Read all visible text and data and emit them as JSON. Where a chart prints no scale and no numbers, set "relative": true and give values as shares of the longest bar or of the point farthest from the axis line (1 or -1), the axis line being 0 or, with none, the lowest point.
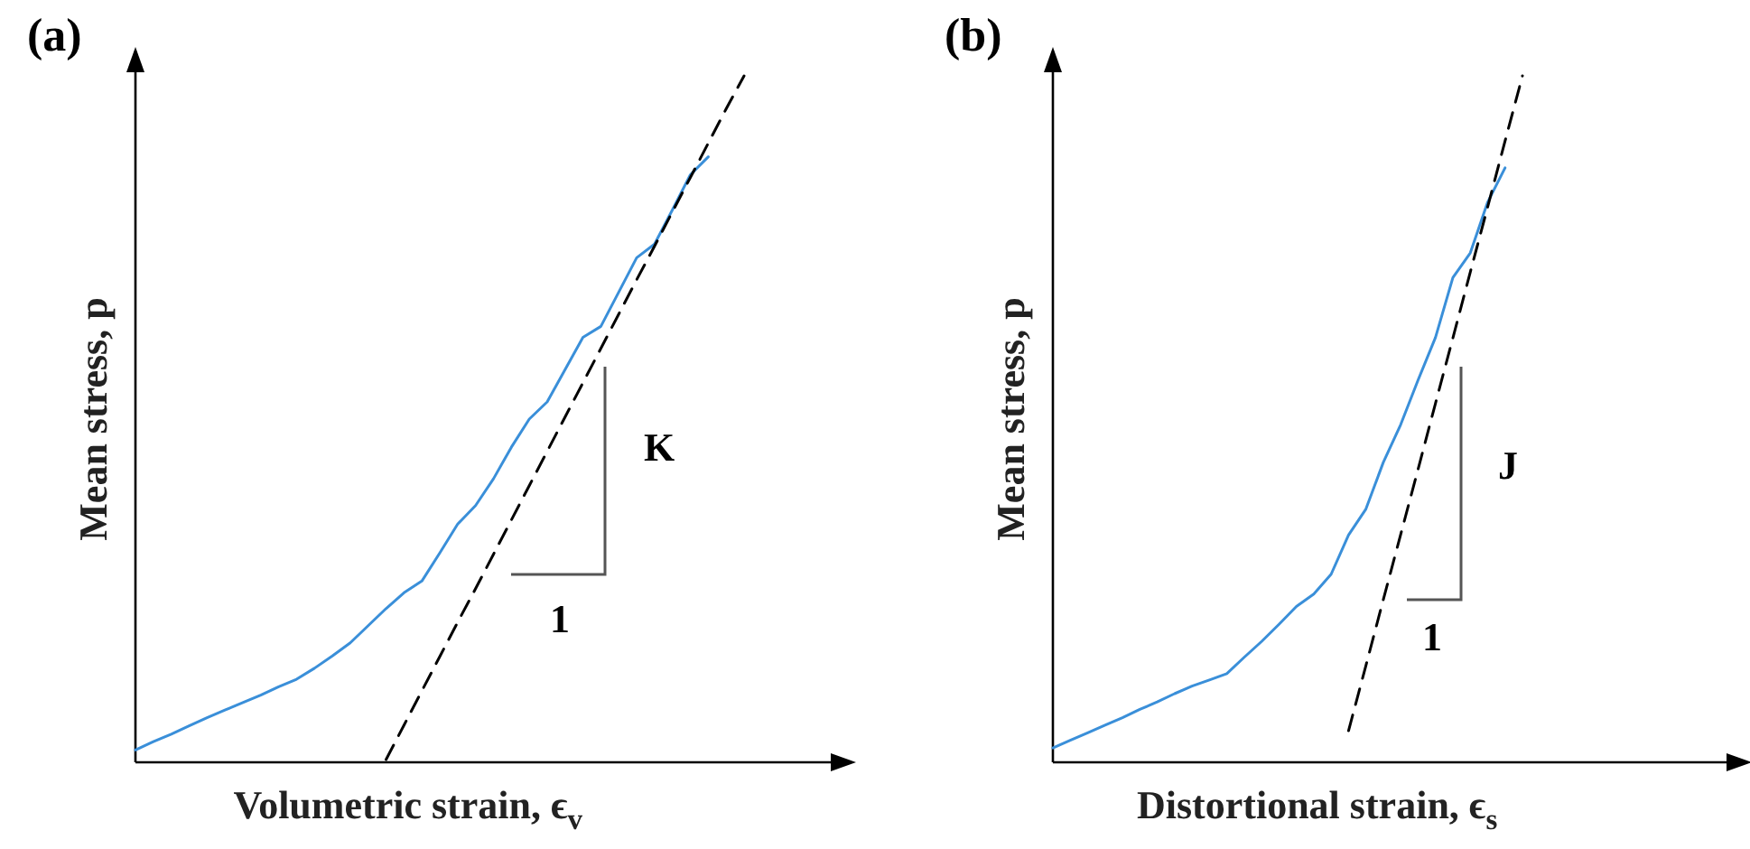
{
  "chart_data": [
    {
      "type": "line",
      "title": "(a)",
      "xlabel": "Volumetric strain, ϵ$_{v}$",
      "ylabel": "Mean stress, p",
      "relative": true,
      "annotations": [
        "K",
        "1"
      ],
      "categories": [
        null,
        null,
        null,
        null,
        null,
        null,
        null,
        null,
        null,
        null,
        null,
        null,
        null,
        null,
        null,
        null,
        null,
        null,
        null,
        null,
        null,
        null,
        null,
        null,
        null,
        null,
        null,
        null,
        null,
        null,
        null,
        null,
        null,
        null,
        null
      ],
      "series": [
        {
          "color": "#3a8fd9",
          "line_style": "solid",
          "values": [
            0.018,
            0.03,
            0.041,
            0.053,
            0.065,
            0.076,
            0.087,
            0.098,
            0.11,
            0.121,
            0.137,
            0.155,
            0.174,
            0.199,
            0.224,
            0.247,
            0.264,
            0.305,
            0.347,
            0.374,
            0.413,
            0.459,
            0.5,
            0.525,
            0.572,
            0.619,
            0.635,
            0.685,
            0.735,
            0.755,
            0.805,
            0.856,
            0.882,
            null,
            null
          ]
        },
        {
          "color": "#000000",
          "line_style": "dashed",
          "values": [
            null,
            null,
            null,
            null,
            null,
            null,
            null,
            null,
            null,
            null,
            null,
            null,
            null,
            null,
            0.004,
            0.054,
            0.104,
            0.154,
            0.204,
            0.253,
            0.303,
            0.353,
            0.403,
            0.453,
            0.503,
            0.553,
            0.603,
            0.653,
            0.703,
            0.752,
            0.802,
            0.852,
            0.902,
            0.952,
            1
          ]
        }
      ]
    },
    {
      "type": "line",
      "title": "(b)",
      "xlabel": "Distortional strain, ϵ$_{s}$",
      "ylabel": "Mean stress, p",
      "relative": true,
      "annotations": [
        "J",
        "1"
      ],
      "categories": [
        null,
        null,
        null,
        null,
        null,
        null,
        null,
        null,
        null,
        null,
        null,
        null,
        null,
        null,
        null,
        null,
        null,
        null,
        null,
        null,
        null,
        null,
        null,
        null,
        null,
        null,
        null,
        null
      ],
      "series": [
        {
          "color": "#3a8fd9",
          "line_style": "solid",
          "values": [
            0.021,
            0.032,
            0.043,
            0.054,
            0.065,
            0.077,
            0.088,
            0.1,
            0.111,
            0.12,
            0.129,
            0.153,
            0.176,
            0.201,
            0.227,
            0.245,
            0.274,
            0.331,
            0.369,
            0.437,
            0.492,
            0.557,
            0.619,
            0.706,
            0.742,
            0.816,
            0.866,
            null
          ]
        },
        {
          "color": "#000000",
          "line_style": "dashed",
          "values": [
            null,
            null,
            null,
            null,
            null,
            null,
            null,
            null,
            null,
            null,
            null,
            null,
            null,
            null,
            null,
            null,
            null,
            0.046,
            0.141,
            0.237,
            0.332,
            0.427,
            0.523,
            0.618,
            0.714,
            0.809,
            0.905,
            1
          ]
        }
      ]
    }
  ]
}
